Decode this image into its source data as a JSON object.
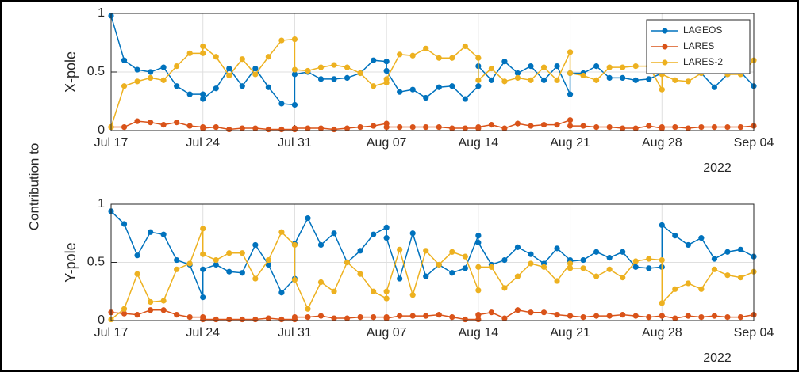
{
  "figure_ylabel": "Contribution to",
  "chart_data": [
    {
      "type": "line",
      "ylabel": "X-pole",
      "x_secondary_label": "2022",
      "legend": "northeast",
      "grid": true,
      "xlim": [
        "2022-07-17",
        "2022-09-04"
      ],
      "xticks": [
        {
          "value": "2022-07-17",
          "label": "Jul 17"
        },
        {
          "value": "2022-07-24",
          "label": "Jul 24"
        },
        {
          "value": "2022-07-31",
          "label": "Jul 31"
        },
        {
          "value": "2022-08-07",
          "label": "Aug 07"
        },
        {
          "value": "2022-08-14",
          "label": "Aug 14"
        },
        {
          "value": "2022-08-21",
          "label": "Aug 21"
        },
        {
          "value": "2022-08-28",
          "label": "Aug 28"
        },
        {
          "value": "2022-09-04",
          "label": "Sep 04"
        }
      ],
      "ylim": [
        0,
        1
      ],
      "yticks": [
        0,
        0.5,
        1
      ],
      "x": [
        "2022-07-17",
        "2022-07-18",
        "2022-07-19",
        "2022-07-20",
        "2022-07-21",
        "2022-07-22",
        "2022-07-23",
        "2022-07-24",
        "2022-07-24",
        "2022-07-25",
        "2022-07-26",
        "2022-07-27",
        "2022-07-28",
        "2022-07-29",
        "2022-07-30",
        "2022-07-31",
        "2022-07-31",
        "2022-08-01",
        "2022-08-02",
        "2022-08-03",
        "2022-08-04",
        "2022-08-05",
        "2022-08-06",
        "2022-08-07",
        "2022-08-07",
        "2022-08-08",
        "2022-08-09",
        "2022-08-10",
        "2022-08-11",
        "2022-08-12",
        "2022-08-13",
        "2022-08-14",
        "2022-08-14",
        "2022-08-15",
        "2022-08-16",
        "2022-08-17",
        "2022-08-18",
        "2022-08-19",
        "2022-08-20",
        "2022-08-21",
        "2022-08-21",
        "2022-08-22",
        "2022-08-23",
        "2022-08-24",
        "2022-08-25",
        "2022-08-26",
        "2022-08-27",
        "2022-08-28",
        "2022-08-28",
        "2022-08-29",
        "2022-08-30",
        "2022-08-31",
        "2022-09-01",
        "2022-09-02",
        "2022-09-03",
        "2022-09-04"
      ],
      "series": [
        {
          "name": "LAGEOS",
          "color": "#0072BD",
          "values": [
            0.98,
            0.6,
            0.52,
            0.5,
            0.54,
            0.38,
            0.31,
            0.31,
            0.27,
            0.36,
            0.53,
            0.38,
            0.53,
            0.37,
            0.23,
            0.22,
            0.48,
            0.5,
            0.44,
            0.44,
            0.45,
            0.49,
            0.6,
            0.59,
            0.51,
            0.33,
            0.35,
            0.28,
            0.37,
            0.38,
            0.27,
            0.38,
            0.55,
            0.43,
            0.59,
            0.49,
            0.55,
            0.43,
            0.55,
            0.31,
            0.49,
            0.49,
            0.55,
            0.45,
            0.45,
            0.43,
            0.44,
            0.49,
            0.56,
            0.56,
            0.53,
            0.49,
            0.37,
            0.48,
            0.5,
            0.38
          ]
        },
        {
          "name": "LARES",
          "color": "#D95319",
          "values": [
            0.03,
            0.03,
            0.08,
            0.07,
            0.05,
            0.07,
            0.04,
            0.03,
            0.02,
            0.03,
            0.01,
            0.02,
            0.02,
            0.01,
            0.01,
            0.01,
            0.02,
            0.02,
            0.02,
            0.01,
            0.02,
            0.03,
            0.04,
            0.06,
            0.03,
            0.03,
            0.03,
            0.03,
            0.03,
            0.02,
            0.02,
            0.02,
            0.03,
            0.05,
            0.02,
            0.06,
            0.04,
            0.05,
            0.05,
            0.09,
            0.04,
            0.04,
            0.03,
            0.03,
            0.02,
            0.02,
            0.04,
            0.02,
            0.03,
            0.03,
            0.02,
            0.03,
            0.03,
            0.03,
            0.03,
            0.04
          ]
        },
        {
          "name": "LARES-2",
          "color": "#EDB120",
          "values": [
            0.03,
            0.38,
            0.42,
            0.45,
            0.43,
            0.55,
            0.66,
            0.66,
            0.72,
            0.63,
            0.47,
            0.61,
            0.48,
            0.63,
            0.77,
            0.78,
            0.52,
            0.51,
            0.54,
            0.56,
            0.54,
            0.49,
            0.38,
            0.41,
            0.44,
            0.65,
            0.64,
            0.7,
            0.62,
            0.62,
            0.72,
            0.62,
            0.43,
            0.53,
            0.42,
            0.45,
            0.43,
            0.54,
            0.43,
            0.67,
            0.49,
            0.47,
            0.43,
            0.54,
            0.54,
            0.55,
            0.55,
            0.35,
            0.48,
            0.43,
            0.42,
            0.49,
            0.58,
            0.48,
            0.48,
            0.6
          ]
        }
      ]
    },
    {
      "type": "line",
      "ylabel": "Y-pole",
      "x_secondary_label": "2022",
      "grid": true,
      "xlim": [
        "2022-07-17",
        "2022-09-04"
      ],
      "xticks": [
        {
          "value": "2022-07-17",
          "label": "Jul 17"
        },
        {
          "value": "2022-07-24",
          "label": "Jul 24"
        },
        {
          "value": "2022-07-31",
          "label": "Jul 31"
        },
        {
          "value": "2022-08-07",
          "label": "Aug 07"
        },
        {
          "value": "2022-08-14",
          "label": "Aug 14"
        },
        {
          "value": "2022-08-21",
          "label": "Aug 21"
        },
        {
          "value": "2022-08-28",
          "label": "Aug 28"
        },
        {
          "value": "2022-09-04",
          "label": "Sep 04"
        }
      ],
      "ylim": [
        0,
        1
      ],
      "yticks": [
        0,
        0.5,
        1
      ],
      "x": [
        "2022-07-17",
        "2022-07-18",
        "2022-07-19",
        "2022-07-20",
        "2022-07-21",
        "2022-07-22",
        "2022-07-23",
        "2022-07-24",
        "2022-07-24",
        "2022-07-25",
        "2022-07-26",
        "2022-07-27",
        "2022-07-28",
        "2022-07-29",
        "2022-07-30",
        "2022-07-31",
        "2022-07-31",
        "2022-08-01",
        "2022-08-02",
        "2022-08-03",
        "2022-08-04",
        "2022-08-05",
        "2022-08-06",
        "2022-08-07",
        "2022-08-07",
        "2022-08-08",
        "2022-08-09",
        "2022-08-10",
        "2022-08-11",
        "2022-08-12",
        "2022-08-13",
        "2022-08-14",
        "2022-08-14",
        "2022-08-15",
        "2022-08-16",
        "2022-08-17",
        "2022-08-18",
        "2022-08-19",
        "2022-08-20",
        "2022-08-21",
        "2022-08-21",
        "2022-08-22",
        "2022-08-23",
        "2022-08-24",
        "2022-08-25",
        "2022-08-26",
        "2022-08-27",
        "2022-08-28",
        "2022-08-28",
        "2022-08-29",
        "2022-08-30",
        "2022-08-31",
        "2022-09-01",
        "2022-09-02",
        "2022-09-03",
        "2022-09-04"
      ],
      "series": [
        {
          "name": "LAGEOS",
          "color": "#0072BD",
          "values": [
            0.94,
            0.83,
            0.56,
            0.76,
            0.74,
            0.52,
            0.48,
            0.2,
            0.44,
            0.48,
            0.42,
            0.41,
            0.65,
            0.48,
            0.24,
            0.36,
            0.66,
            0.88,
            0.65,
            0.75,
            0.5,
            0.6,
            0.74,
            0.8,
            0.71,
            0.36,
            0.75,
            0.38,
            0.48,
            0.41,
            0.45,
            0.73,
            0.67,
            0.48,
            0.52,
            0.63,
            0.57,
            0.49,
            0.62,
            0.52,
            0.51,
            0.52,
            0.59,
            0.54,
            0.59,
            0.46,
            0.45,
            0.46,
            0.82,
            0.73,
            0.65,
            0.71,
            0.53,
            0.59,
            0.61,
            0.55
          ]
        },
        {
          "name": "LARES",
          "color": "#D95319",
          "values": [
            0.07,
            0.06,
            0.05,
            0.09,
            0.09,
            0.05,
            0.03,
            0.03,
            0.01,
            0.01,
            0.01,
            0.01,
            0.01,
            0.02,
            0.01,
            0.01,
            0.03,
            0.03,
            0.04,
            0.02,
            0.02,
            0.03,
            0.03,
            0.03,
            0.02,
            0.04,
            0.04,
            0.04,
            0.05,
            0.03,
            0.01,
            0.01,
            0.05,
            0.07,
            0.02,
            0.09,
            0.07,
            0.07,
            0.05,
            0.04,
            0.04,
            0.03,
            0.04,
            0.04,
            0.05,
            0.04,
            0.03,
            0.04,
            0.04,
            0.02,
            0.04,
            0.03,
            0.04,
            0.03,
            0.03,
            0.05
          ]
        },
        {
          "name": "LARES-2",
          "color": "#EDB120",
          "values": [
            0.01,
            0.1,
            0.4,
            0.16,
            0.17,
            0.44,
            0.49,
            0.79,
            0.57,
            0.52,
            0.58,
            0.58,
            0.36,
            0.52,
            0.76,
            0.65,
            0.35,
            0.1,
            0.33,
            0.25,
            0.5,
            0.4,
            0.25,
            0.19,
            0.25,
            0.61,
            0.22,
            0.6,
            0.48,
            0.59,
            0.55,
            0.26,
            0.46,
            0.46,
            0.28,
            0.38,
            0.49,
            0.46,
            0.34,
            0.49,
            0.45,
            0.45,
            0.38,
            0.44,
            0.37,
            0.51,
            0.53,
            0.52,
            0.15,
            0.27,
            0.32,
            0.27,
            0.44,
            0.39,
            0.37,
            0.42
          ]
        }
      ]
    }
  ]
}
